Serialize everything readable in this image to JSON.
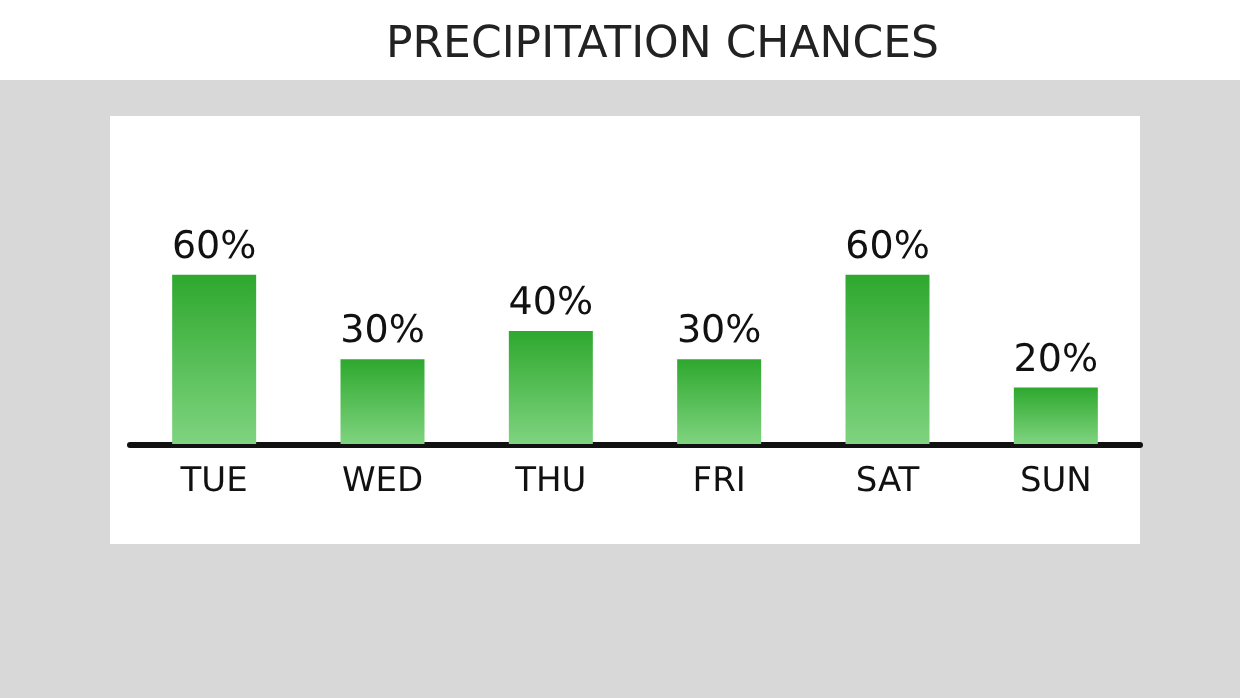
{
  "chart_data": {
    "type": "bar",
    "title": "PRECIPITATION CHANCES",
    "categories": [
      "TUE",
      "WED",
      "THU",
      "FRI",
      "SAT",
      "SUN"
    ],
    "values": [
      60,
      30,
      40,
      30,
      60,
      20
    ],
    "value_labels": [
      "60%",
      "30%",
      "40%",
      "30%",
      "60%",
      "20%"
    ],
    "color": "#2ea82e"
  }
}
